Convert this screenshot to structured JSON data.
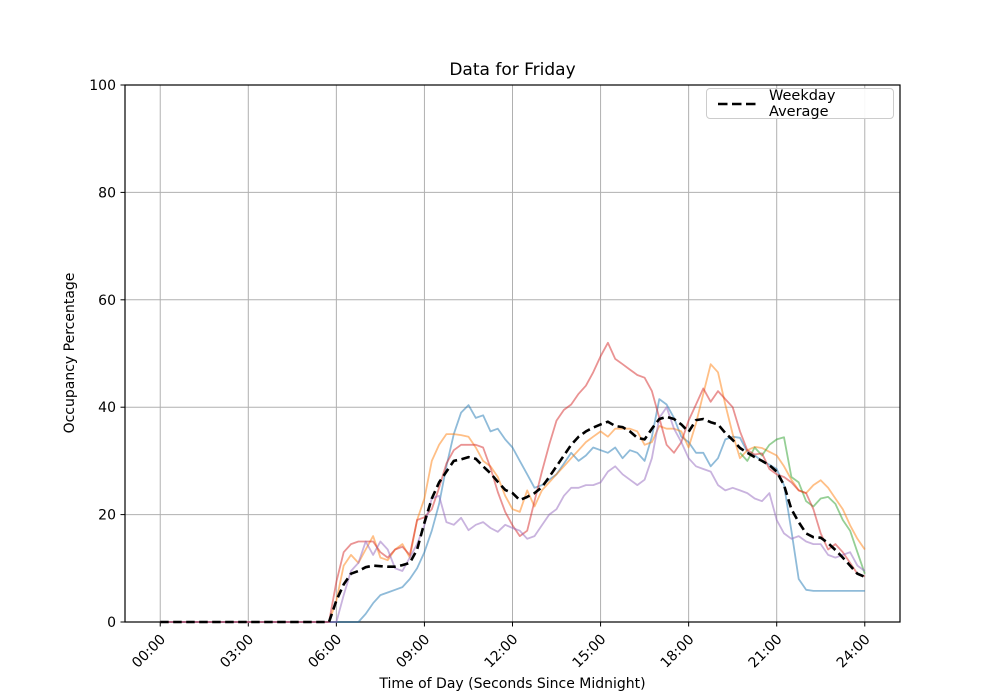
{
  "figure": {
    "title": "Data for Friday",
    "x_label": "Time of Day (Seconds Since Midnight)",
    "y_label": "Occupancy Percentage",
    "legend": [
      {
        "label": "Weekday Average",
        "color": "#000000",
        "line_style": "dashed"
      }
    ]
  },
  "chart_data": {
    "type": "line",
    "title": "Data for Friday",
    "xlabel": "Time of Day (Seconds Since Midnight)",
    "ylabel": "Occupancy Percentage",
    "grid": true,
    "grid_color": "#b0b0b0",
    "legend_position": "upper right",
    "x_axis": {
      "unit": "hours",
      "start": 0,
      "step": 0.25,
      "tick_hours": [
        0,
        3,
        6,
        9,
        12,
        15,
        18,
        21,
        24
      ],
      "tick_labels": [
        "00:00",
        "03:00",
        "06:00",
        "09:00",
        "12:00",
        "15:00",
        "18:00",
        "21:00",
        "24:00"
      ],
      "xlim_hours": [
        -1.2,
        25.2
      ]
    },
    "y_axis": {
      "ticks": [
        0,
        20,
        40,
        60,
        80,
        100
      ],
      "ylim": [
        0,
        100
      ]
    },
    "series": [
      {
        "name": "series-1-blue",
        "legend_label": null,
        "color": "#1f77b4",
        "opacity": 0.5,
        "line_style": "solid",
        "linewidth": 1.8,
        "values": [
          0,
          0,
          0,
          0,
          0,
          0,
          0,
          0,
          0,
          0,
          0,
          0,
          0,
          0,
          0,
          0,
          0,
          0,
          0,
          0,
          0,
          0,
          0,
          0,
          0,
          0,
          0,
          0,
          1.5,
          3.5,
          5,
          5.5,
          6,
          6.5,
          8,
          10,
          13,
          17,
          22,
          29,
          35,
          39,
          40.4,
          38,
          38.5,
          35.5,
          36,
          34,
          32.5,
          30,
          27.5,
          25,
          25.5,
          26.5,
          27.5,
          29.5,
          31.5,
          30,
          31,
          32.5,
          32,
          31.5,
          32.5,
          30.5,
          32,
          31.5,
          30,
          34.5,
          41.5,
          40.5,
          38,
          34.5,
          33.5,
          31.5,
          31.5,
          29,
          30.5,
          34,
          34.5,
          34.3,
          31.7,
          31,
          30,
          29.3,
          28.5,
          25.5,
          17,
          8,
          6,
          5.8,
          5.8,
          5.8,
          5.8,
          5.8,
          5.8,
          5.8,
          5.8
        ]
      },
      {
        "name": "series-2-orange",
        "legend_label": null,
        "color": "#ff7f0e",
        "opacity": 0.5,
        "line_style": "solid",
        "linewidth": 1.8,
        "values": [
          0,
          0,
          0,
          0,
          0,
          0,
          0,
          0,
          0,
          0,
          0,
          0,
          0,
          0,
          0,
          0,
          0,
          0,
          0,
          0,
          0,
          0,
          0,
          0,
          4,
          10.5,
          12.5,
          11,
          13.5,
          16,
          12,
          11.5,
          13.5,
          14.5,
          12,
          19,
          23,
          30,
          33,
          35,
          35,
          34.8,
          34.5,
          32.5,
          30,
          29,
          27,
          23.5,
          21,
          20.5,
          24.5,
          21.5,
          24.5,
          26,
          27.5,
          29,
          30.5,
          32,
          33.5,
          34.5,
          35.5,
          34.5,
          36,
          36,
          36,
          35.5,
          33,
          33.5,
          36.5,
          36,
          36,
          35.5,
          32.5,
          37,
          42.5,
          48,
          46.5,
          40.5,
          35,
          30.5,
          32,
          32.6,
          32.4,
          31.7,
          31,
          29,
          26.5,
          24.5,
          24,
          25.5,
          26.4,
          25,
          23,
          21,
          18,
          15.5,
          13.5
        ]
      },
      {
        "name": "series-3-green",
        "legend_label": null,
        "color": "#2ca02c",
        "opacity": 0.5,
        "line_style": "solid",
        "linewidth": 1.8,
        "values": [
          null,
          null,
          null,
          null,
          null,
          null,
          null,
          null,
          null,
          null,
          null,
          null,
          null,
          null,
          null,
          null,
          null,
          null,
          null,
          null,
          null,
          null,
          null,
          null,
          null,
          null,
          null,
          null,
          null,
          null,
          null,
          null,
          null,
          null,
          null,
          null,
          null,
          null,
          null,
          null,
          null,
          null,
          null,
          null,
          null,
          null,
          null,
          null,
          null,
          null,
          null,
          null,
          null,
          null,
          null,
          null,
          null,
          null,
          null,
          null,
          null,
          null,
          null,
          null,
          null,
          null,
          null,
          null,
          null,
          null,
          null,
          null,
          null,
          null,
          null,
          null,
          null,
          null,
          null,
          31.5,
          30,
          32.5,
          31,
          33,
          34,
          34.4,
          27,
          26,
          22.5,
          21.5,
          23,
          23.3,
          22,
          19,
          17,
          13,
          9
        ]
      },
      {
        "name": "series-4-red",
        "legend_label": null,
        "color": "#d62728",
        "opacity": 0.5,
        "line_style": "solid",
        "linewidth": 1.8,
        "values": [
          0,
          0,
          0,
          0,
          0,
          0,
          0,
          0,
          0,
          0,
          0,
          0,
          0,
          0,
          0,
          0,
          0,
          0,
          0,
          0,
          0,
          0,
          0,
          0,
          7.5,
          13,
          14.5,
          15,
          15,
          15,
          13,
          12,
          13.5,
          14,
          12.5,
          19,
          19.5,
          21,
          25,
          29.5,
          32,
          33,
          33,
          33,
          32.5,
          28.7,
          24.2,
          20.5,
          18,
          16,
          17,
          22.5,
          28,
          33,
          37.5,
          39.5,
          40.5,
          42.5,
          44,
          46.5,
          49.5,
          52,
          49,
          48,
          47,
          46,
          45.5,
          43,
          38,
          33,
          31.5,
          33.5,
          37.5,
          40.5,
          43.5,
          41,
          43,
          41.5,
          40,
          35.5,
          32,
          31.2,
          31.4,
          28.5,
          27.5,
          27,
          26,
          24.5,
          24,
          21,
          16.5,
          13.5,
          14.5,
          13,
          11,
          9,
          8.5
        ]
      },
      {
        "name": "series-5-purple",
        "legend_label": null,
        "color": "#9467bd",
        "opacity": 0.5,
        "line_style": "solid",
        "linewidth": 1.8,
        "values": [
          0,
          0,
          0,
          0,
          0,
          0,
          0,
          0,
          0,
          0,
          0,
          0,
          0,
          0,
          0,
          0,
          0,
          0,
          0,
          0,
          0,
          0,
          0,
          0,
          0,
          5,
          9.5,
          11,
          15,
          12.5,
          15,
          13.5,
          10,
          9.5,
          12,
          14.5,
          18,
          23,
          23.5,
          18.6,
          18.1,
          19.4,
          17.1,
          18.1,
          18.6,
          17.5,
          16.8,
          18.1,
          17.5,
          17,
          15.5,
          16,
          18,
          20,
          21,
          23.5,
          25,
          25,
          25.5,
          25.5,
          26,
          28,
          29,
          27.5,
          26.5,
          25.5,
          26.5,
          30.5,
          38,
          40,
          36,
          33.5,
          30.5,
          29,
          28.5,
          28,
          25.5,
          24.5,
          25,
          24.5,
          24,
          23,
          22.5,
          24,
          19,
          16.5,
          15.5,
          16,
          15,
          14.5,
          14.5,
          12.5,
          12,
          12.5,
          13,
          10.5,
          9.5
        ]
      },
      {
        "name": "weekday-average",
        "legend_label": "Weekday Average",
        "color": "#000000",
        "opacity": 1,
        "line_style": "dashed",
        "linewidth": 2.6,
        "values": [
          0,
          0,
          0,
          0,
          0,
          0,
          0,
          0,
          0,
          0,
          0,
          0,
          0,
          0,
          0,
          0,
          0,
          0,
          0,
          0,
          0,
          0,
          0,
          0,
          4,
          7,
          9,
          9.5,
          10.2,
          10.5,
          10.4,
          10.3,
          10.3,
          10.6,
          11,
          13.5,
          18.5,
          23,
          26,
          28,
          30,
          30.3,
          30.7,
          30.4,
          29,
          27.7,
          26.1,
          24.6,
          24,
          22.7,
          23.3,
          24,
          25.1,
          27,
          29,
          31,
          33,
          34.5,
          35.5,
          36.2,
          36.8,
          37.3,
          36.5,
          36.3,
          35.5,
          34.3,
          34,
          36,
          37.8,
          38.2,
          37.8,
          36.8,
          35.4,
          37.6,
          37.8,
          37.2,
          36.8,
          35.2,
          33.9,
          32.4,
          31.5,
          30.7,
          30,
          29.2,
          28,
          25.5,
          21,
          18.6,
          16.5,
          15.8,
          15.7,
          14.7,
          13.4,
          12,
          10.5,
          9,
          8.4
        ]
      }
    ]
  }
}
